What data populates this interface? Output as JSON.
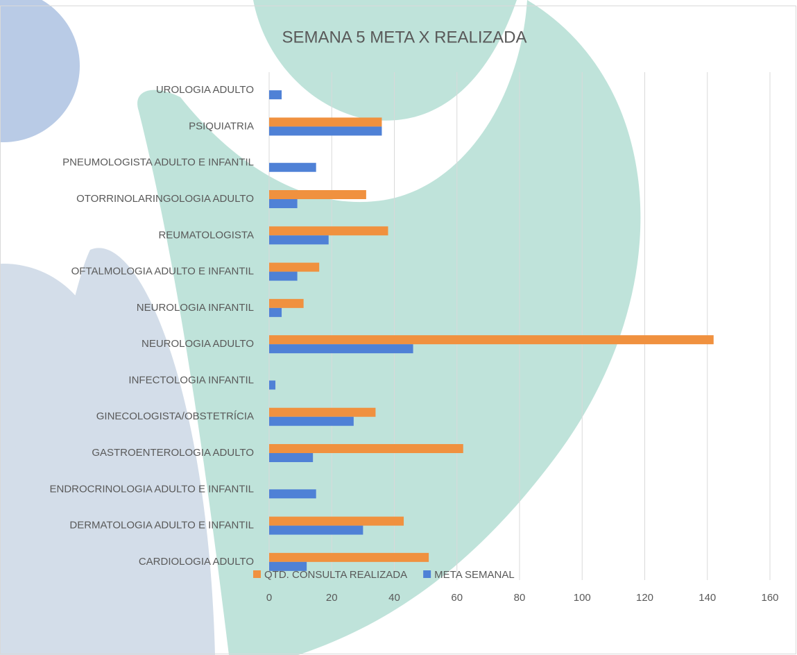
{
  "chart_data": {
    "type": "barh",
    "title": "SEMANA 5 META X REALIZADA",
    "categories": [
      "UROLOGIA ADULTO",
      "PSIQUIATRIA",
      "PNEUMOLOGISTA ADULTO E INFANTIL",
      "OTORRINOLARINGOLOGIA ADULTO",
      "REUMATOLOGISTA",
      "OFTALMOLOGIA ADULTO E INFANTIL",
      "NEUROLOGIA INFANTIL",
      "NEUROLOGIA ADULTO",
      "INFECTOLOGIA INFANTIL",
      "GINECOLOGISTA/OBSTETRÍCIA",
      "GASTROENTEROLOGIA ADULTO",
      "ENDROCRINOLOGIA ADULTO E INFANTIL",
      "DERMATOLOGIA ADULTO E INFANTIL",
      "CARDIOLOGIA ADULTO"
    ],
    "series": [
      {
        "name": "QTD. CONSULTA REALIZADA",
        "color": "#f0913f",
        "values": [
          null,
          36,
          null,
          31,
          38,
          16,
          11,
          142,
          null,
          34,
          62,
          null,
          43,
          51
        ]
      },
      {
        "name": "META SEMANAL",
        "color": "#4f81d6",
        "values": [
          4,
          36,
          15,
          9,
          19,
          9,
          4,
          46,
          2,
          27,
          14,
          15,
          30,
          12
        ]
      }
    ],
    "xlim": [
      0,
      160
    ],
    "xticks": [
      0,
      20,
      40,
      60,
      80,
      100,
      120,
      140,
      160
    ],
    "grid": true,
    "legend": "bottom"
  }
}
